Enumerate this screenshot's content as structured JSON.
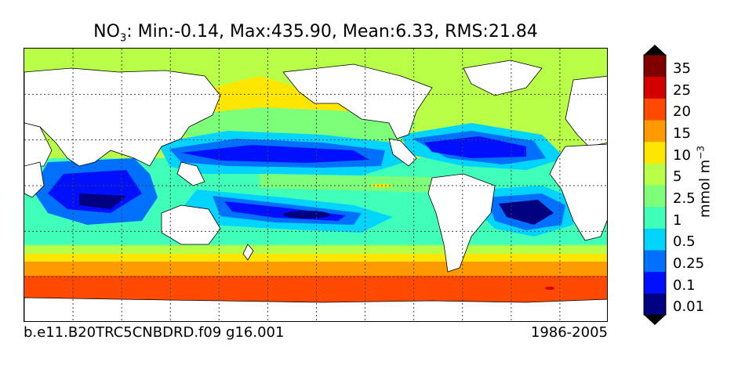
{
  "title": {
    "species": "NO",
    "subscript": "3",
    "stats": ": Min:-0.14, Max:435.90, Mean:6.33, RMS:21.84"
  },
  "footer": {
    "case_name": "b.e11.B20TRC5CNBDRD.f09 g16.001",
    "years": "1986-2005"
  },
  "colorbar": {
    "units_base": "mmol m",
    "units_exponent": "−3",
    "labels": [
      "0.01",
      "0.1",
      "0.25",
      "0.5",
      "1",
      "2.5",
      "5",
      "10",
      "15",
      "20",
      "25",
      "35"
    ],
    "colors": [
      "#000080",
      "#0010ff",
      "#0070ff",
      "#00d4ff",
      "#40ffb8",
      "#7dff7a",
      "#b8ff47",
      "#ffe600",
      "#ff9a00",
      "#ff4a00",
      "#d40000",
      "#800000"
    ],
    "extend": "both"
  },
  "map": {
    "land_color": "#ffffff",
    "gridlines": "dotted",
    "ocean_colors": {
      "deep_blue": "#000080",
      "blue": "#0010ff",
      "mid_blue": "#0070ff",
      "cyan": "#00d4ff",
      "aqua": "#40ffb8",
      "green": "#7dff7a",
      "yellow_green": "#b8ff47",
      "yellow": "#ffe600",
      "orange": "#ff9a00",
      "red_orange": "#ff4a00",
      "red": "#d40000"
    }
  }
}
